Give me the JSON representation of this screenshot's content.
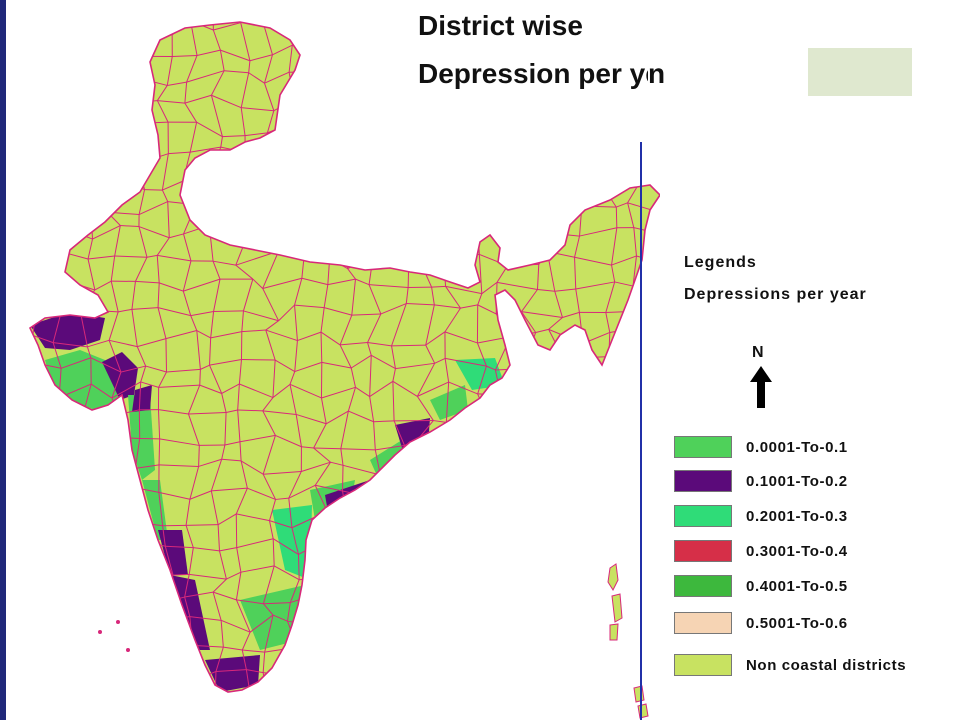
{
  "title": {
    "line1": "District wise",
    "line2": "Depression per year",
    "line2_tail": "n"
  },
  "legend": {
    "heading": "Legends",
    "subheading": "Depressions per year",
    "north_label": "N",
    "items": [
      {
        "label": "0.0001-To-0.1",
        "color": "#4fd15a"
      },
      {
        "label": "0.1001-To-0.2",
        "color": "#5b0a7a"
      },
      {
        "label": "0.2001-To-0.3",
        "color": "#2fdc78"
      },
      {
        "label": "0.3001-To-0.4",
        "color": "#d62f48"
      },
      {
        "label": "0.4001-To-0.5",
        "color": "#3db83d"
      },
      {
        "label": "0.5001-To-0.6",
        "color": "#f6d4b4"
      },
      {
        "label": "Non coastal districts",
        "color": "#c8e261"
      }
    ]
  },
  "map": {
    "land_color": "#c8e261",
    "border_color": "#d8287a",
    "coastal_low_color": "#4fd15a",
    "coastal_mid_color": "#5b0a7a",
    "coastal_high_color": "#2fdc78"
  }
}
